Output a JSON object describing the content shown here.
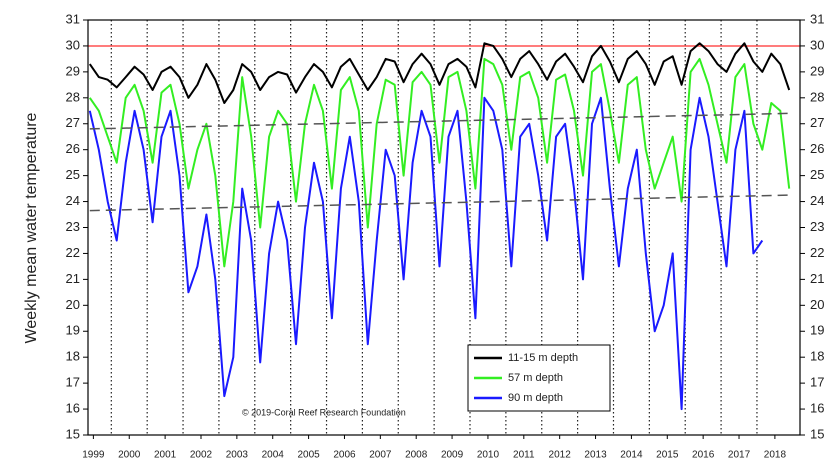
{
  "chart_data": {
    "type": "line",
    "ylabel": "Weekly mean water temperature",
    "annotation": "© 2019-Coral Reef Research Foundation",
    "xlim": [
      1999.35,
      2019.2
    ],
    "xticks": [
      {
        "value": 1999.5,
        "label": "1999"
      },
      {
        "value": 2000.5,
        "label": "2000"
      },
      {
        "value": 2001.5,
        "label": "2001"
      },
      {
        "value": 2002.5,
        "label": "2002"
      },
      {
        "value": 2003.5,
        "label": "2003"
      },
      {
        "value": 2004.5,
        "label": "2004"
      },
      {
        "value": 2005.5,
        "label": "2005"
      },
      {
        "value": 2006.5,
        "label": "2006"
      },
      {
        "value": 2007.5,
        "label": "2007"
      },
      {
        "value": 2008.5,
        "label": "2008"
      },
      {
        "value": 2009.5,
        "label": "2009"
      },
      {
        "value": 2010.5,
        "label": "2010"
      },
      {
        "value": 2011.5,
        "label": "2011"
      },
      {
        "value": 2012.5,
        "label": "2012"
      },
      {
        "value": 2013.5,
        "label": "2013"
      },
      {
        "value": 2014.5,
        "label": "2014"
      },
      {
        "value": 2015.5,
        "label": "2015"
      },
      {
        "value": 2016.5,
        "label": "2016"
      },
      {
        "value": 2017.5,
        "label": "2017"
      },
      {
        "value": 2018.5,
        "label": "2018"
      }
    ],
    "x_grid": [
      2000,
      2001,
      2002,
      2003,
      2004,
      2005,
      2006,
      2007,
      2008,
      2009,
      2010,
      2011,
      2012,
      2013,
      2014,
      2015,
      2016,
      2017,
      2018
    ],
    "ylim": [
      15,
      31
    ],
    "yticks": [
      15,
      16,
      17,
      18,
      19,
      20,
      21,
      22,
      23,
      24,
      25,
      26,
      27,
      28,
      29,
      30,
      31
    ],
    "y2lim": [
      15,
      31
    ],
    "y2ticks": [
      15,
      16,
      17,
      18,
      19,
      20,
      21,
      22,
      23,
      24,
      25,
      26,
      27,
      28,
      29,
      30,
      31
    ],
    "legend": "lower right",
    "reference_lines": [
      {
        "value": 30,
        "color": "#ff5050"
      }
    ],
    "trend_lines": [
      {
        "x": [
          1999.4,
          2018.9
        ],
        "values": [
          23.65,
          24.25
        ],
        "color": "#555555"
      },
      {
        "x": [
          1999.4,
          2018.9
        ],
        "values": [
          26.8,
          27.4
        ],
        "color": "#555555"
      }
    ],
    "x": [
      1999.4,
      1999.65,
      1999.9,
      2000.15,
      2000.4,
      2000.65,
      2000.9,
      2001.15,
      2001.4,
      2001.65,
      2001.9,
      2002.15,
      2002.4,
      2002.65,
      2002.9,
      2003.15,
      2003.4,
      2003.65,
      2003.9,
      2004.15,
      2004.4,
      2004.65,
      2004.9,
      2005.15,
      2005.4,
      2005.65,
      2005.9,
      2006.15,
      2006.4,
      2006.65,
      2006.9,
      2007.15,
      2007.4,
      2007.65,
      2007.9,
      2008.15,
      2008.4,
      2008.65,
      2008.9,
      2009.15,
      2009.4,
      2009.65,
      2009.9,
      2010.15,
      2010.4,
      2010.65,
      2010.9,
      2011.15,
      2011.4,
      2011.65,
      2011.9,
      2012.15,
      2012.4,
      2012.65,
      2012.9,
      2013.15,
      2013.4,
      2013.65,
      2013.9,
      2014.15,
      2014.4,
      2014.65,
      2014.9,
      2015.15,
      2015.4,
      2015.65,
      2015.9,
      2016.15,
      2016.4,
      2016.65,
      2016.9,
      2017.15,
      2017.4,
      2017.65,
      2017.9,
      2018.15,
      2018.4,
      2018.65,
      2018.9
    ],
    "series": [
      {
        "name": "11-15 m depth",
        "color": "#000000",
        "values": [
          29.3,
          28.8,
          28.7,
          28.4,
          28.8,
          29.2,
          28.9,
          28.3,
          29,
          29.2,
          28.8,
          28,
          28.5,
          29.3,
          28.7,
          27.8,
          28.3,
          29.3,
          29,
          28.3,
          28.8,
          29,
          28.9,
          28.2,
          28.8,
          29.3,
          29,
          28.4,
          29.2,
          29.5,
          28.9,
          28.3,
          28.8,
          29.5,
          29.4,
          28.6,
          29.3,
          29.7,
          29.3,
          28.5,
          29.3,
          29.5,
          29.2,
          28.4,
          30.1,
          30,
          29.5,
          28.8,
          29.5,
          29.8,
          29.3,
          28.7,
          29.4,
          29.7,
          29.2,
          28.6,
          29.6,
          30,
          29.4,
          28.6,
          29.5,
          29.8,
          29.3,
          28.5,
          29.4,
          29.6,
          28.5,
          29.8,
          30.1,
          29.8,
          29.3,
          29,
          29.7,
          30.1,
          29.4,
          29,
          29.7,
          29.3,
          28.3
        ]
      },
      {
        "name": "57 m depth",
        "color": "#33ee22",
        "values": [
          28,
          27.5,
          26.5,
          25.5,
          28,
          28.5,
          27.5,
          25.5,
          28.2,
          28.5,
          27,
          24.5,
          26,
          27,
          25,
          21.5,
          24,
          28.8,
          26.5,
          23,
          26.5,
          27.5,
          27,
          24,
          27,
          28.5,
          27.5,
          24.5,
          28.3,
          28.8,
          27.5,
          23,
          27,
          28.7,
          28.5,
          25,
          28.6,
          29,
          28.5,
          25.5,
          28.8,
          29,
          27.5,
          24.5,
          29.5,
          29.3,
          28.5,
          26,
          28.8,
          29,
          28,
          25.5,
          28.7,
          28.9,
          27.5,
          25,
          29,
          29.3,
          27.5,
          25.5,
          28.5,
          28.8,
          26,
          24.5,
          25.5,
          26.5,
          24,
          29,
          29.5,
          28.5,
          27,
          25.5,
          28.8,
          29.3,
          27,
          26,
          27.8,
          27.5,
          24.5
        ]
      },
      {
        "name": "90 m depth",
        "color": "#1a1aff",
        "values": [
          27.5,
          26,
          24,
          22.5,
          25.5,
          27.5,
          26,
          23.2,
          26.5,
          27.5,
          25,
          20.5,
          21.5,
          23.5,
          21,
          16.5,
          18,
          24.5,
          22.5,
          17.8,
          22,
          24,
          22.5,
          18.5,
          23,
          25.5,
          24,
          19.5,
          24.5,
          26.5,
          24,
          18.5,
          22.5,
          26,
          25,
          21,
          25.5,
          27.5,
          26.5,
          21.5,
          26.5,
          27.5,
          24,
          19.5,
          28,
          27.5,
          26,
          21.5,
          26.5,
          27,
          25,
          22.5,
          26.5,
          27,
          24.5,
          21,
          27,
          28,
          24.5,
          21.5,
          24.5,
          26,
          22,
          19,
          20,
          22,
          16,
          26,
          28,
          26.5,
          24,
          21.5,
          26,
          27.5,
          22,
          22.5,
          null,
          null,
          null
        ]
      }
    ]
  }
}
